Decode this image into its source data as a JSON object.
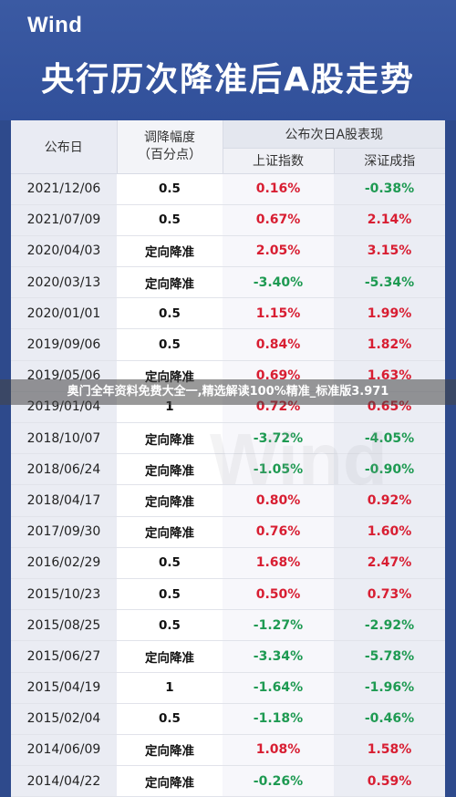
{
  "header": {
    "logo": "Wind",
    "title": "央行历次降准后A股走势"
  },
  "table": {
    "columns": {
      "date": "公布日",
      "range_line1": "调降幅度",
      "range_line2": "（百分点）",
      "group": "公布次日A股表现",
      "sh": "上证指数",
      "sz": "深证成指"
    },
    "rows": [
      {
        "date": "2021/12/06",
        "range": "0.5",
        "sh": "0.16%",
        "sz": "-0.38%"
      },
      {
        "date": "2021/07/09",
        "range": "0.5",
        "sh": "0.67%",
        "sz": "2.14%"
      },
      {
        "date": "2020/04/03",
        "range": "定向降准",
        "sh": "2.05%",
        "sz": "3.15%"
      },
      {
        "date": "2020/03/13",
        "range": "定向降准",
        "sh": "-3.40%",
        "sz": "-5.34%"
      },
      {
        "date": "2020/01/01",
        "range": "0.5",
        "sh": "1.15%",
        "sz": "1.99%"
      },
      {
        "date": "2019/09/06",
        "range": "0.5",
        "sh": "0.84%",
        "sz": "1.82%"
      },
      {
        "date": "2019/05/06",
        "range": "定向降准",
        "sh": "0.69%",
        "sz": "1.63%"
      },
      {
        "date": "2019/01/04",
        "range": "1",
        "sh": "0.72%",
        "sz": "0.65%"
      },
      {
        "date": "2018/10/07",
        "range": "定向降准",
        "sh": "-3.72%",
        "sz": "-4.05%"
      },
      {
        "date": "2018/06/24",
        "range": "定向降准",
        "sh": "-1.05%",
        "sz": "-0.90%"
      },
      {
        "date": "2018/04/17",
        "range": "定向降准",
        "sh": "0.80%",
        "sz": "0.92%"
      },
      {
        "date": "2017/09/30",
        "range": "定向降准",
        "sh": "0.76%",
        "sz": "1.60%"
      },
      {
        "date": "2016/02/29",
        "range": "0.5",
        "sh": "1.68%",
        "sz": "2.47%"
      },
      {
        "date": "2015/10/23",
        "range": "0.5",
        "sh": "0.50%",
        "sz": "0.73%"
      },
      {
        "date": "2015/08/25",
        "range": "0.5",
        "sh": "-1.27%",
        "sz": "-2.92%"
      },
      {
        "date": "2015/06/27",
        "range": "定向降准",
        "sh": "-3.34%",
        "sz": "-5.78%"
      },
      {
        "date": "2015/04/19",
        "range": "1",
        "sh": "-1.64%",
        "sz": "-1.96%"
      },
      {
        "date": "2015/02/04",
        "range": "0.5",
        "sh": "-1.18%",
        "sz": "-0.46%"
      },
      {
        "date": "2014/06/09",
        "range": "定向降准",
        "sh": "1.08%",
        "sz": "1.58%"
      },
      {
        "date": "2014/04/22",
        "range": "定向降准",
        "sh": "-0.26%",
        "sz": "0.59%"
      }
    ]
  },
  "overlay_banner": "奥门全年资料免费大全一,精选解读100%精准_标准版3.971",
  "watermark": "Wind",
  "colors": {
    "positive": "#d81e32",
    "negative": "#1e9a52",
    "header_bg": "#3b5aa3"
  }
}
